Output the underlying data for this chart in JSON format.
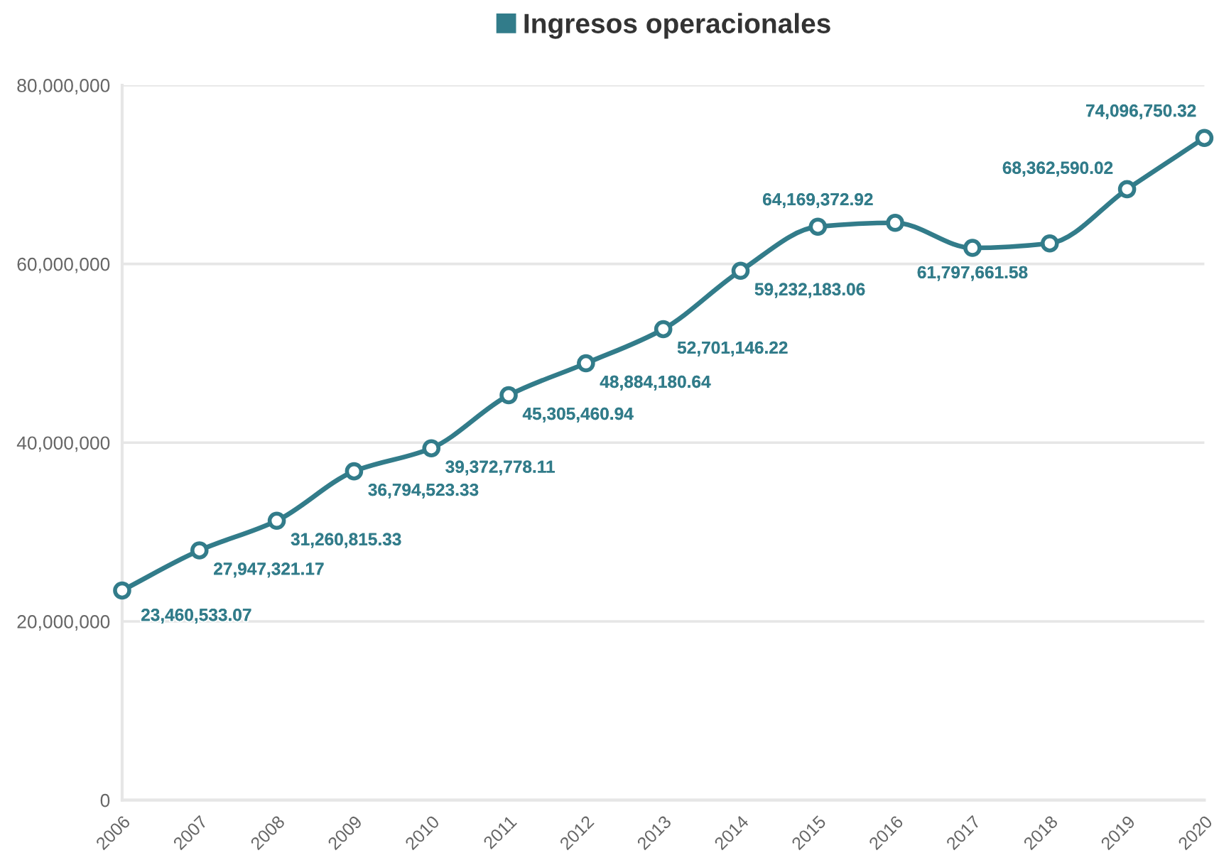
{
  "chart_data": {
    "type": "line",
    "categories": [
      "2006",
      "2007",
      "2008",
      "2009",
      "2010",
      "2011",
      "2012",
      "2013",
      "2014",
      "2015",
      "2016",
      "2017",
      "2018",
      "2019",
      "2020"
    ],
    "series": [
      {
        "name": "Ingresos operacionales",
        "color": "#327c8a",
        "values": [
          23460533.07,
          27947321.17,
          31260815.33,
          36794523.33,
          39372778.11,
          45305460.94,
          48884180.64,
          52701146.22,
          59232183.06,
          64169372.92,
          64600000,
          61797661.58,
          62300000,
          68362590.02,
          74096750.32
        ],
        "value_labels": [
          "23,460,533.07",
          "27,947,321.17",
          "31,260,815.33",
          "36,794,523.33",
          "39,372,778.11",
          "45,305,460.94",
          "48,884,180.64",
          "52,701,146.22",
          "59,232,183.06",
          "64,169,372.92",
          null,
          "61,797,661.58",
          null,
          "68,362,590.02",
          "74,096,750.32"
        ]
      }
    ],
    "ylim": [
      0,
      80000000
    ],
    "yticks": [
      0,
      {
        "value": 20000000,
        "label": "20,000,000"
      },
      {
        "value": 40000000,
        "label": "40,000,000"
      },
      {
        "value": 60000000,
        "label": "60,000,000"
      },
      {
        "value": 80000000,
        "label": "80,000,000"
      }
    ],
    "grid": "y",
    "legend": "top",
    "marker": "circle",
    "line_style": "solid"
  }
}
